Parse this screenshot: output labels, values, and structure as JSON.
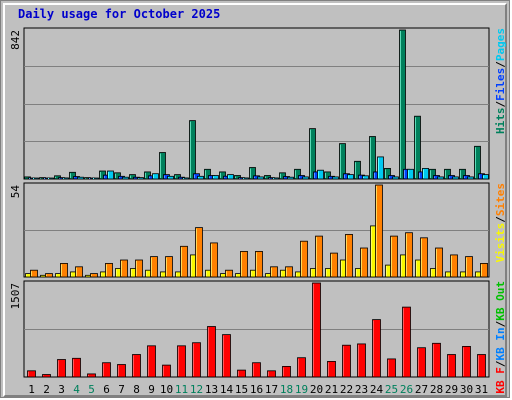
{
  "title": "Daily usage for October 2025",
  "colors": {
    "background": "#c0c0c0",
    "plot_bg": "#c0c0c0",
    "grid": "#808080",
    "hits": "#00805c",
    "files": "#0040ff",
    "pages": "#00c8f0",
    "visits": "#f8f800",
    "sites": "#ff8000",
    "kbout": "#00c000",
    "kbin": "#0080ff",
    "kbf": "#ff0000",
    "title": "#0000cc",
    "weekend": "#00805c",
    "weekday": "#000000"
  },
  "chart_data": [
    {
      "type": "bar",
      "panel": "top",
      "ymax_label": "842",
      "legend": [
        {
          "text": "Hits",
          "color_key": "hits"
        },
        {
          "text": "/",
          "color_key": "weekday"
        },
        {
          "text": "Files",
          "color_key": "files"
        },
        {
          "text": "/",
          "color_key": "weekday"
        },
        {
          "text": "Pages",
          "color_key": "pages"
        }
      ],
      "ylim": [
        0,
        842
      ],
      "categories": [
        "1",
        "2",
        "3",
        "4",
        "5",
        "6",
        "7",
        "8",
        "9",
        "10",
        "11",
        "12",
        "13",
        "14",
        "15",
        "16",
        "17",
        "18",
        "19",
        "20",
        "21",
        "22",
        "23",
        "24",
        "25",
        "26",
        "27",
        "28",
        "29",
        "30",
        "31"
      ],
      "series": [
        {
          "name": "Hits",
          "color_key": "hits",
          "values": [
            12,
            8,
            18,
            38,
            8,
            45,
            35,
            25,
            40,
            150,
            25,
            330,
            55,
            40,
            20,
            65,
            20,
            35,
            55,
            285,
            40,
            200,
            100,
            240,
            60,
            842,
            355,
            55,
            55,
            55,
            185
          ]
        },
        {
          "name": "Files",
          "color_key": "files",
          "values": [
            5,
            3,
            8,
            14,
            3,
            22,
            15,
            10,
            18,
            25,
            10,
            30,
            20,
            16,
            8,
            18,
            8,
            14,
            20,
            40,
            15,
            30,
            22,
            40,
            20,
            55,
            40,
            20,
            20,
            20,
            30
          ]
        },
        {
          "name": "Pages",
          "color_key": "pages",
          "values": [
            4,
            3,
            6,
            10,
            3,
            45,
            10,
            8,
            30,
            15,
            6,
            15,
            20,
            25,
            6,
            12,
            6,
            10,
            12,
            50,
            12,
            25,
            18,
            125,
            12,
            55,
            60,
            12,
            12,
            12,
            25
          ]
        }
      ]
    },
    {
      "type": "bar",
      "panel": "middle",
      "ymax_label": "54",
      "legend": [
        {
          "text": "Visits",
          "color_key": "visits"
        },
        {
          "text": "/",
          "color_key": "weekday"
        },
        {
          "text": "Sites",
          "color_key": "sites"
        }
      ],
      "ylim": [
        0,
        54
      ],
      "categories": [
        "1",
        "2",
        "3",
        "4",
        "5",
        "6",
        "7",
        "8",
        "9",
        "10",
        "11",
        "12",
        "13",
        "14",
        "15",
        "16",
        "17",
        "18",
        "19",
        "20",
        "21",
        "22",
        "23",
        "24",
        "25",
        "26",
        "27",
        "28",
        "29",
        "30",
        "31"
      ],
      "series": [
        {
          "name": "Visits",
          "color_key": "visits",
          "values": [
            2,
            1,
            2,
            3,
            1,
            3,
            5,
            5,
            4,
            3,
            3,
            13,
            4,
            2,
            2,
            4,
            2,
            4,
            3,
            5,
            5,
            10,
            5,
            30,
            7,
            13,
            10,
            5,
            3,
            3,
            3
          ]
        },
        {
          "name": "Sites",
          "color_key": "sites",
          "values": [
            4,
            2,
            8,
            6,
            2,
            8,
            10,
            10,
            12,
            12,
            18,
            29,
            20,
            4,
            15,
            15,
            6,
            6,
            21,
            24,
            14,
            25,
            17,
            54,
            24,
            26,
            23,
            17,
            13,
            12,
            8
          ]
        }
      ]
    },
    {
      "type": "bar",
      "panel": "bottom",
      "ymax_label": "1507",
      "legend": [
        {
          "text": "KB F",
          "color_key": "kbf"
        },
        {
          "text": "/",
          "color_key": "weekday"
        },
        {
          "text": "KB In",
          "color_key": "kbin"
        },
        {
          "text": "/",
          "color_key": "weekday"
        },
        {
          "text": "KB Out",
          "color_key": "kbout"
        }
      ],
      "ylim": [
        0,
        1507
      ],
      "categories": [
        "1",
        "2",
        "3",
        "4",
        "5",
        "6",
        "7",
        "8",
        "9",
        "10",
        "11",
        "12",
        "13",
        "14",
        "15",
        "16",
        "17",
        "18",
        "19",
        "20",
        "21",
        "22",
        "23",
        "24",
        "25",
        "26",
        "27",
        "28",
        "29",
        "30",
        "31"
      ],
      "series": [
        {
          "name": "KB F",
          "color_key": "kbf",
          "values": [
            100,
            40,
            280,
            300,
            50,
            230,
            200,
            360,
            500,
            190,
            500,
            550,
            810,
            680,
            110,
            230,
            100,
            170,
            310,
            1507,
            250,
            510,
            530,
            920,
            290,
            1120,
            470,
            540,
            360,
            490,
            360
          ]
        }
      ]
    }
  ],
  "x_labels": [
    {
      "text": "1",
      "weekend": false
    },
    {
      "text": "2",
      "weekend": false
    },
    {
      "text": "3",
      "weekend": false
    },
    {
      "text": "4",
      "weekend": true
    },
    {
      "text": "5",
      "weekend": true
    },
    {
      "text": "6",
      "weekend": false
    },
    {
      "text": "7",
      "weekend": false
    },
    {
      "text": "8",
      "weekend": false
    },
    {
      "text": "9",
      "weekend": false
    },
    {
      "text": "10",
      "weekend": false
    },
    {
      "text": "11",
      "weekend": true
    },
    {
      "text": "12",
      "weekend": true
    },
    {
      "text": "13",
      "weekend": false
    },
    {
      "text": "14",
      "weekend": false
    },
    {
      "text": "15",
      "weekend": false
    },
    {
      "text": "16",
      "weekend": false
    },
    {
      "text": "17",
      "weekend": false
    },
    {
      "text": "18",
      "weekend": true
    },
    {
      "text": "19",
      "weekend": true
    },
    {
      "text": "20",
      "weekend": false
    },
    {
      "text": "21",
      "weekend": false
    },
    {
      "text": "22",
      "weekend": false
    },
    {
      "text": "23",
      "weekend": false
    },
    {
      "text": "24",
      "weekend": false
    },
    {
      "text": "25",
      "weekend": true
    },
    {
      "text": "26",
      "weekend": true
    },
    {
      "text": "27",
      "weekend": false
    },
    {
      "text": "28",
      "weekend": false
    },
    {
      "text": "29",
      "weekend": false
    },
    {
      "text": "30",
      "weekend": false
    },
    {
      "text": "31",
      "weekend": false
    }
  ]
}
